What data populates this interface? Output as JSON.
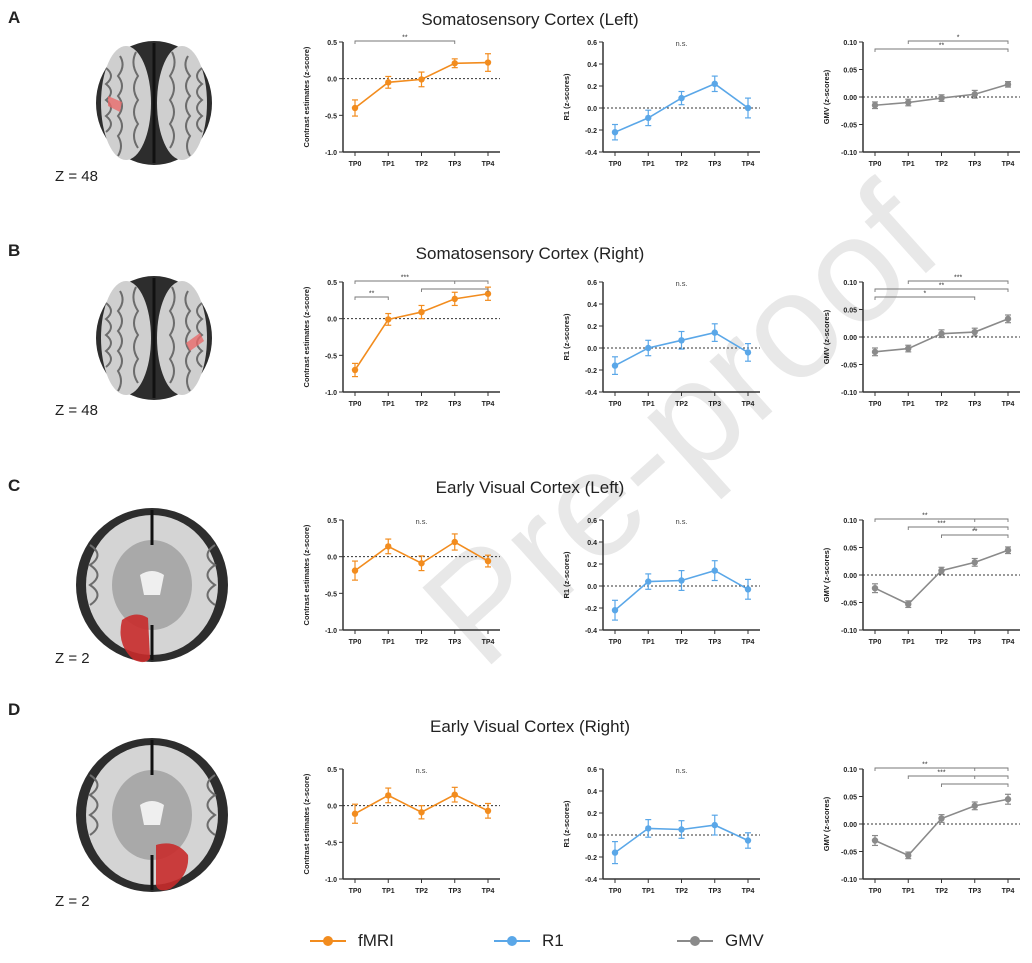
{
  "panels": [
    {
      "letter": "A",
      "title": "Somatosensory Cortex (Left)",
      "z_label": "Z = 48",
      "brain_view": "superior",
      "roi_side": "left"
    },
    {
      "letter": "B",
      "title": "Somatosensory Cortex (Right)",
      "z_label": "Z = 48",
      "brain_view": "superior",
      "roi_side": "right"
    },
    {
      "letter": "C",
      "title": "Early Visual Cortex (Left)",
      "z_label": "Z = 2",
      "brain_view": "axial",
      "roi_side": "left"
    },
    {
      "letter": "D",
      "title": "Early Visual Cortex (Right)",
      "z_label": "Z = 2",
      "brain_view": "axial",
      "roi_side": "right"
    }
  ],
  "legend": [
    {
      "label": "fMRI",
      "color": "#f28c1e"
    },
    {
      "label": "R1",
      "color": "#5aa7e8"
    },
    {
      "label": "GMV",
      "color": "#8a8a8a"
    }
  ],
  "watermark": "Pre-proof",
  "chart_data": [
    {
      "type": "line",
      "panel": "A",
      "measure": "fMRI",
      "color": "#f28c1e",
      "ylabel": "Contrast estimates (z-score)",
      "ylim": [
        -1.0,
        0.5
      ],
      "yticks": [
        "0.5",
        "0.0",
        "-0.5",
        "-1.0"
      ],
      "yticks_values": [
        0.5,
        0.0,
        -0.5,
        -1.0
      ],
      "categories": [
        "TP0",
        "TP1",
        "TP2",
        "TP3",
        "TP4"
      ],
      "values": [
        -0.4,
        -0.05,
        -0.01,
        0.21,
        0.22
      ],
      "errors": [
        0.11,
        0.08,
        0.1,
        0.06,
        0.12
      ],
      "annotation": "",
      "brackets": [
        {
          "from": 0,
          "to": 3,
          "label": "**"
        }
      ]
    },
    {
      "type": "line",
      "panel": "A",
      "measure": "R1",
      "color": "#5aa7e8",
      "ylabel": "R1 (z-scores)",
      "ylim": [
        -0.4,
        0.6
      ],
      "yticks": [
        "0.6",
        "0.4",
        "0.2",
        "0.0",
        "-0.2",
        "-0.4"
      ],
      "yticks_values": [
        0.6,
        0.4,
        0.2,
        0.0,
        -0.2,
        -0.4
      ],
      "categories": [
        "TP0",
        "TP1",
        "TP2",
        "TP3",
        "TP4"
      ],
      "values": [
        -0.22,
        -0.09,
        0.09,
        0.22,
        0.0
      ],
      "errors": [
        0.07,
        0.07,
        0.06,
        0.07,
        0.09
      ],
      "annotation": "n.s.",
      "brackets": []
    },
    {
      "type": "line",
      "panel": "A",
      "measure": "GMV",
      "color": "#8a8a8a",
      "ylabel": "GMV (z-scores)",
      "ylim": [
        -0.1,
        0.1
      ],
      "yticks": [
        "0.10",
        "0.05",
        "0.00",
        "-0.05",
        "-0.10"
      ],
      "yticks_values": [
        0.1,
        0.05,
        0.0,
        -0.05,
        -0.1
      ],
      "categories": [
        "TP0",
        "TP1",
        "TP2",
        "TP3",
        "TP4"
      ],
      "values": [
        -0.015,
        -0.01,
        -0.002,
        0.005,
        0.023
      ],
      "errors": [
        0.006,
        0.006,
        0.006,
        0.007,
        0.005
      ],
      "annotation": "",
      "brackets": [
        {
          "from": 1,
          "to": 4,
          "label": "*"
        },
        {
          "from": 0,
          "to": 4,
          "label": "**"
        }
      ]
    },
    {
      "type": "line",
      "panel": "B",
      "measure": "fMRI",
      "color": "#f28c1e",
      "ylabel": "Contrast estimates (z-score)",
      "ylim": [
        -1.0,
        0.5
      ],
      "yticks": [
        "0.5",
        "0.0",
        "-0.5",
        "-1.0"
      ],
      "yticks_values": [
        0.5,
        0.0,
        -0.5,
        -1.0
      ],
      "categories": [
        "TP0",
        "TP1",
        "TP2",
        "TP3",
        "TP4"
      ],
      "values": [
        -0.7,
        -0.01,
        0.09,
        0.27,
        0.34
      ],
      "errors": [
        0.09,
        0.08,
        0.09,
        0.09,
        0.09
      ],
      "annotation": "",
      "brackets": [
        {
          "from": 0,
          "to": 3,
          "label": "***",
          "join_to": 4
        },
        {
          "from": 2,
          "to": 4,
          "label": ""
        },
        {
          "from": 0,
          "to": 1,
          "label": "**"
        }
      ]
    },
    {
      "type": "line",
      "panel": "B",
      "measure": "R1",
      "color": "#5aa7e8",
      "ylabel": "R1 (z-scores)",
      "ylim": [
        -0.4,
        0.6
      ],
      "yticks": [
        "0.6",
        "0.4",
        "0.2",
        "0.0",
        "-0.2",
        "-0.4"
      ],
      "yticks_values": [
        0.6,
        0.4,
        0.2,
        0.0,
        -0.2,
        -0.4
      ],
      "categories": [
        "TP0",
        "TP1",
        "TP2",
        "TP3",
        "TP4"
      ],
      "values": [
        -0.16,
        0.0,
        0.07,
        0.14,
        -0.04
      ],
      "errors": [
        0.08,
        0.07,
        0.08,
        0.08,
        0.08
      ],
      "annotation": "n.s.",
      "brackets": []
    },
    {
      "type": "line",
      "panel": "B",
      "measure": "GMV",
      "color": "#8a8a8a",
      "ylabel": "GMV (z-scores)",
      "ylim": [
        -0.1,
        0.1
      ],
      "yticks": [
        "0.10",
        "0.05",
        "0.00",
        "-0.05",
        "-0.10"
      ],
      "yticks_values": [
        0.1,
        0.05,
        0.0,
        -0.05,
        -0.1
      ],
      "categories": [
        "TP0",
        "TP1",
        "TP2",
        "TP3",
        "TP4"
      ],
      "values": [
        -0.027,
        -0.021,
        0.006,
        0.009,
        0.033
      ],
      "errors": [
        0.007,
        0.006,
        0.007,
        0.007,
        0.007
      ],
      "annotation": "",
      "brackets": [
        {
          "from": 1,
          "to": 4,
          "label": "***"
        },
        {
          "from": 0,
          "to": 4,
          "label": "**"
        },
        {
          "from": 0,
          "to": 3,
          "label": "*"
        }
      ]
    },
    {
      "type": "line",
      "panel": "C",
      "measure": "fMRI",
      "color": "#f28c1e",
      "ylabel": "Contrast estimates (z-score)",
      "ylim": [
        -1.0,
        0.5
      ],
      "yticks": [
        "0.5",
        "0.0",
        "-0.5",
        "-1.0"
      ],
      "yticks_values": [
        0.5,
        0.0,
        -0.5,
        -1.0
      ],
      "categories": [
        "TP0",
        "TP1",
        "TP2",
        "TP3",
        "TP4"
      ],
      "values": [
        -0.19,
        0.14,
        -0.09,
        0.2,
        -0.06
      ],
      "errors": [
        0.13,
        0.1,
        0.1,
        0.11,
        0.08
      ],
      "annotation": "n.s.",
      "brackets": []
    },
    {
      "type": "line",
      "panel": "C",
      "measure": "R1",
      "color": "#5aa7e8",
      "ylabel": "R1 (z-scores)",
      "ylim": [
        -0.4,
        0.6
      ],
      "yticks": [
        "0.6",
        "0.4",
        "0.2",
        "0.0",
        "-0.2",
        "-0.4"
      ],
      "yticks_values": [
        0.6,
        0.4,
        0.2,
        0.0,
        -0.2,
        -0.4
      ],
      "categories": [
        "TP0",
        "TP1",
        "TP2",
        "TP3",
        "TP4"
      ],
      "values": [
        -0.22,
        0.04,
        0.05,
        0.14,
        -0.03
      ],
      "errors": [
        0.09,
        0.07,
        0.09,
        0.09,
        0.09
      ],
      "annotation": "n.s.",
      "brackets": []
    },
    {
      "type": "line",
      "panel": "C",
      "measure": "GMV",
      "color": "#8a8a8a",
      "ylabel": "GMV (z-scores)",
      "ylim": [
        -0.1,
        0.1
      ],
      "yticks": [
        "0.10",
        "0.05",
        "0.00",
        "-0.05",
        "-0.10"
      ],
      "yticks_values": [
        0.1,
        0.05,
        0.0,
        -0.05,
        -0.1
      ],
      "categories": [
        "TP0",
        "TP1",
        "TP2",
        "TP3",
        "TP4"
      ],
      "values": [
        -0.024,
        -0.053,
        0.008,
        0.023,
        0.045
      ],
      "errors": [
        0.008,
        0.006,
        0.006,
        0.007,
        0.006
      ],
      "annotation": "",
      "brackets": [
        {
          "from": 0,
          "to": 3,
          "label": "**",
          "join_to": 4
        },
        {
          "from": 1,
          "to": 3,
          "label": "***",
          "join_to": 4
        },
        {
          "from": 2,
          "to": 4,
          "label": "**"
        }
      ]
    },
    {
      "type": "line",
      "panel": "D",
      "measure": "fMRI",
      "color": "#f28c1e",
      "ylabel": "Contrast estimates (z-score)",
      "ylim": [
        -1.0,
        0.5
      ],
      "yticks": [
        "0.5",
        "0.0",
        "-0.5",
        "-1.0"
      ],
      "yticks_values": [
        0.5,
        0.0,
        -0.5,
        -1.0
      ],
      "categories": [
        "TP0",
        "TP1",
        "TP2",
        "TP3",
        "TP4"
      ],
      "values": [
        -0.11,
        0.14,
        -0.09,
        0.15,
        -0.07
      ],
      "errors": [
        0.13,
        0.1,
        0.09,
        0.1,
        0.1
      ],
      "annotation": "n.s.",
      "brackets": []
    },
    {
      "type": "line",
      "panel": "D",
      "measure": "R1",
      "color": "#5aa7e8",
      "ylabel": "R1 (z-scores)",
      "ylim": [
        -0.4,
        0.6
      ],
      "yticks": [
        "0.6",
        "0.4",
        "0.2",
        "0.0",
        "-0.2",
        "-0.4"
      ],
      "yticks_values": [
        0.6,
        0.4,
        0.2,
        0.0,
        -0.2,
        -0.4
      ],
      "categories": [
        "TP0",
        "TP1",
        "TP2",
        "TP3",
        "TP4"
      ],
      "values": [
        -0.16,
        0.06,
        0.05,
        0.09,
        -0.05
      ],
      "errors": [
        0.1,
        0.08,
        0.08,
        0.09,
        0.07
      ],
      "annotation": "n.s.",
      "brackets": []
    },
    {
      "type": "line",
      "panel": "D",
      "measure": "GMV",
      "color": "#8a8a8a",
      "ylabel": "GMV (z-scores)",
      "ylim": [
        -0.1,
        0.1
      ],
      "yticks": [
        "0.10",
        "0.05",
        "0.00",
        "-0.05",
        "-0.10"
      ],
      "yticks_values": [
        0.1,
        0.05,
        0.0,
        -0.05,
        -0.1
      ],
      "categories": [
        "TP0",
        "TP1",
        "TP2",
        "TP3",
        "TP4"
      ],
      "values": [
        -0.03,
        -0.057,
        0.01,
        0.033,
        0.045
      ],
      "errors": [
        0.009,
        0.006,
        0.007,
        0.007,
        0.009
      ],
      "annotation": "",
      "brackets": [
        {
          "from": 0,
          "to": 3,
          "label": "**",
          "join_to": 4
        },
        {
          "from": 1,
          "to": 3,
          "label": "***",
          "join_to": 4
        },
        {
          "from": 2,
          "to": 4,
          "label": ""
        }
      ]
    }
  ]
}
